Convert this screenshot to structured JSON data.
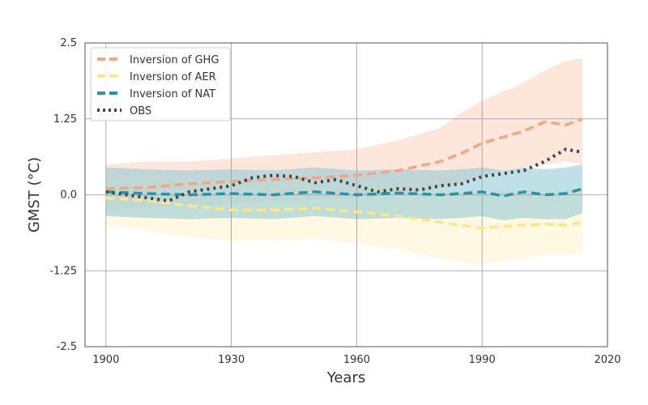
{
  "chart_data": {
    "type": "line",
    "xlabel": "Years",
    "ylabel": "GMST (°C)",
    "xlim": [
      1895,
      2020
    ],
    "ylim": [
      -2.5,
      2.5
    ],
    "xticks": [
      1900,
      1930,
      1960,
      1990,
      2020
    ],
    "yticks": [
      2.5,
      1.25,
      0.0,
      -1.25,
      -2.5
    ],
    "ytick_labels": [
      "2.5",
      "1.25",
      "0.0",
      "-1.25",
      "-2.5"
    ],
    "grid": true,
    "legend_position": "top-left",
    "series": [
      {
        "name": "Inversion of GHG",
        "color": "#f4a582",
        "band_color": "#fcd2bf",
        "style": "dashed",
        "x": [
          1900,
          1910,
          1920,
          1930,
          1940,
          1950,
          1960,
          1970,
          1980,
          1985,
          1990,
          1995,
          2000,
          2005,
          2010,
          2014
        ],
        "values": [
          0.1,
          0.12,
          0.18,
          0.22,
          0.25,
          0.28,
          0.32,
          0.4,
          0.55,
          0.68,
          0.85,
          0.95,
          1.05,
          1.2,
          1.15,
          1.25
        ],
        "lower": [
          -0.25,
          -0.2,
          -0.18,
          -0.15,
          -0.1,
          -0.08,
          -0.05,
          0.0,
          0.1,
          0.2,
          0.3,
          0.4,
          0.45,
          0.5,
          0.55,
          0.5
        ],
        "upper": [
          0.5,
          0.55,
          0.55,
          0.6,
          0.65,
          0.7,
          0.75,
          0.9,
          1.1,
          1.35,
          1.55,
          1.7,
          1.85,
          2.05,
          2.2,
          2.25
        ]
      },
      {
        "name": "Inversion of AER",
        "color": "#fde68a",
        "band_color": "#fff2cc",
        "style": "dashed",
        "x": [
          1900,
          1910,
          1920,
          1930,
          1940,
          1950,
          1960,
          1970,
          1980,
          1985,
          1990,
          1995,
          2000,
          2005,
          2010,
          2014
        ],
        "values": [
          -0.05,
          -0.1,
          -0.18,
          -0.25,
          -0.25,
          -0.22,
          -0.28,
          -0.35,
          -0.45,
          -0.5,
          -0.55,
          -0.52,
          -0.5,
          -0.48,
          -0.5,
          -0.45
        ],
        "lower": [
          -0.5,
          -0.6,
          -0.7,
          -0.75,
          -0.75,
          -0.72,
          -0.8,
          -0.9,
          -1.05,
          -1.1,
          -1.15,
          -1.1,
          -1.05,
          -1.0,
          -1.0,
          -0.95
        ],
        "upper": [
          0.35,
          0.3,
          0.25,
          0.2,
          0.22,
          0.25,
          0.2,
          0.15,
          0.1,
          0.05,
          0.05,
          0.05,
          0.08,
          0.05,
          0.05,
          0.1
        ]
      },
      {
        "name": "Inversion of NAT",
        "color": "#2a93a8",
        "band_color": "#8cc6d4",
        "style": "dashed",
        "x": [
          1900,
          1910,
          1920,
          1930,
          1940,
          1950,
          1960,
          1970,
          1980,
          1985,
          1990,
          1995,
          2000,
          2005,
          2010,
          2014
        ],
        "values": [
          0.05,
          0.02,
          0.0,
          0.02,
          0.0,
          0.05,
          0.0,
          0.03,
          0.0,
          0.02,
          0.05,
          -0.02,
          0.05,
          0.0,
          0.02,
          0.1
        ],
        "lower": [
          -0.35,
          -0.38,
          -0.4,
          -0.38,
          -0.4,
          -0.35,
          -0.4,
          -0.38,
          -0.4,
          -0.38,
          -0.35,
          -0.42,
          -0.38,
          -0.4,
          -0.4,
          -0.3
        ],
        "upper": [
          0.45,
          0.42,
          0.4,
          0.42,
          0.4,
          0.45,
          0.4,
          0.42,
          0.4,
          0.42,
          0.45,
          0.4,
          0.45,
          0.42,
          0.45,
          0.5
        ]
      },
      {
        "name": "OBS",
        "color": "#444444",
        "style": "dotted",
        "x": [
          1900,
          1905,
          1910,
          1915,
          1920,
          1925,
          1930,
          1935,
          1940,
          1945,
          1950,
          1955,
          1960,
          1965,
          1970,
          1975,
          1980,
          1985,
          1990,
          1995,
          2000,
          2005,
          2010,
          2014
        ],
        "values": [
          0.05,
          0.0,
          -0.05,
          -0.1,
          0.05,
          0.1,
          0.15,
          0.28,
          0.32,
          0.3,
          0.2,
          0.25,
          0.15,
          0.05,
          0.1,
          0.08,
          0.15,
          0.18,
          0.3,
          0.35,
          0.4,
          0.55,
          0.75,
          0.7
        ]
      }
    ]
  }
}
